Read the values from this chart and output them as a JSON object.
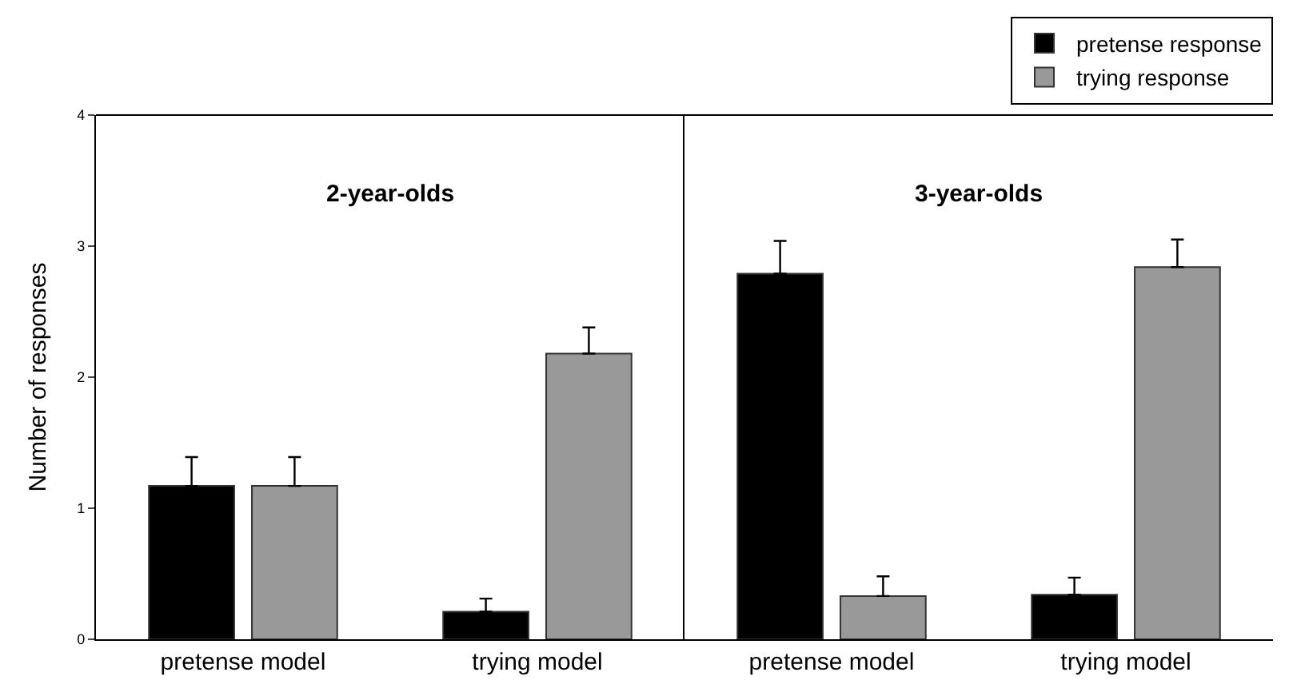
{
  "chart_data": [
    {
      "type": "bar",
      "annotations": [
        "2-year-olds"
      ],
      "ylabel": "Number of responses",
      "categories": [
        "pretense model",
        "trying model"
      ],
      "ylim": [
        0,
        4
      ],
      "yticks": [
        0,
        1,
        2,
        3,
        4
      ],
      "legend": "top right",
      "series": [
        {
          "name": "pretense response",
          "color": "#000000",
          "values": [
            1.17,
            0.21
          ],
          "errors": [
            [
              1.17,
              1.39
            ],
            [
              0.21,
              0.31
            ]
          ]
        },
        {
          "name": "trying response",
          "color": "#999999",
          "values": [
            1.17,
            2.18
          ],
          "errors": [
            [
              1.17,
              1.39
            ],
            [
              2.18,
              2.38
            ]
          ]
        }
      ]
    },
    {
      "type": "bar",
      "annotations": [
        "3-year-olds"
      ],
      "categories": [
        "pretense model",
        "trying model"
      ],
      "ylim": [
        0,
        4
      ],
      "tick_labels": "x",
      "series": [
        {
          "name": "pretense response",
          "color": "#000000",
          "values": [
            2.79,
            0.34
          ],
          "errors": [
            [
              2.79,
              3.04
            ],
            [
              0.34,
              0.47
            ]
          ]
        },
        {
          "name": "trying response",
          "color": "#999999",
          "values": [
            0.33,
            2.84
          ],
          "errors": [
            [
              0.33,
              0.48
            ],
            [
              2.84,
              3.05
            ]
          ]
        }
      ]
    }
  ]
}
